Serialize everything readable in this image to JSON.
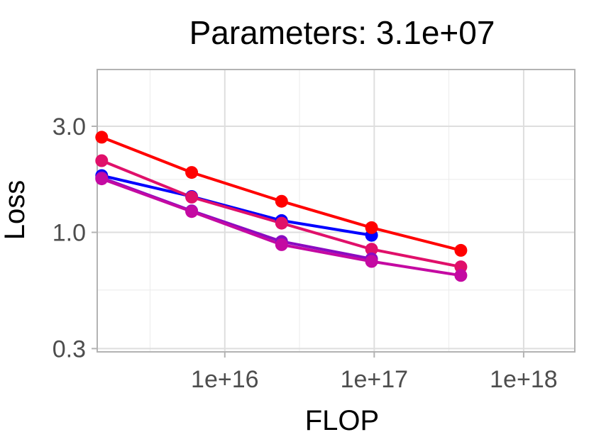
{
  "chart_data": {
    "type": "line",
    "title": "Parameters: 3.1e+07",
    "xlabel": "FLOP",
    "ylabel": "Loss",
    "x_scale": "log10",
    "y_scale": "log10",
    "xlim": [
      1400000000000000.0,
      2.2e+18
    ],
    "ylim": [
      0.29,
      5.4
    ],
    "x_ticks": [
      {
        "value": 1e+16,
        "label": "1e+16"
      },
      {
        "value": 1e+17,
        "label": "1e+17"
      },
      {
        "value": 1e+18,
        "label": "1e+18"
      }
    ],
    "x_minor_ticks": [
      3160000000000000.0,
      3.16e+16,
      3.16e+17
    ],
    "y_ticks": [
      {
        "value": 0.3,
        "label": "0.3"
      },
      {
        "value": 1.0,
        "label": "1.0"
      },
      {
        "value": 3.0,
        "label": "3.0"
      }
    ],
    "y_minor_ticks": [
      0.55,
      1.73
    ],
    "grid": true,
    "legend": "none",
    "series": [
      {
        "color": "#0000ff",
        "x": [
          1500000000000000.0,
          6000000000000000.0,
          2.4e+16,
          9.6e+16
        ],
        "values": [
          1.8,
          1.45,
          1.13,
          0.97
        ]
      },
      {
        "color": "#ff0000",
        "x": [
          1500000000000000.0,
          6000000000000000.0,
          2.4e+16,
          9.6e+16,
          3.8e+17
        ],
        "values": [
          2.68,
          1.86,
          1.38,
          1.05,
          0.83
        ]
      },
      {
        "color": "#e0106a",
        "x": [
          1500000000000000.0,
          6000000000000000.0,
          2.4e+16,
          9.6e+16,
          3.8e+17
        ],
        "values": [
          2.1,
          1.44,
          1.1,
          0.84,
          0.7
        ]
      },
      {
        "color": "#8a0bc2",
        "x": [
          1500000000000000.0,
          6000000000000000.0,
          2.4e+16,
          9.6e+16
        ],
        "values": [
          1.76,
          1.25,
          0.91,
          0.76
        ]
      },
      {
        "color": "#c40aa2",
        "x": [
          1500000000000000.0,
          6000000000000000.0,
          2.4e+16,
          9.6e+16,
          3.8e+17
        ],
        "values": [
          1.74,
          1.24,
          0.88,
          0.74,
          0.64
        ]
      }
    ]
  }
}
